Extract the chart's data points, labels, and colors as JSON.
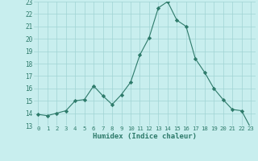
{
  "xlabel": "Humidex (Indice chaleur)",
  "x": [
    0,
    1,
    2,
    3,
    4,
    5,
    6,
    7,
    8,
    9,
    10,
    11,
    12,
    13,
    14,
    15,
    16,
    17,
    18,
    19,
    20,
    21,
    22,
    23
  ],
  "y": [
    13.9,
    13.8,
    14.0,
    14.2,
    15.0,
    15.1,
    16.2,
    15.4,
    14.7,
    15.5,
    16.5,
    18.7,
    20.1,
    22.5,
    23.0,
    21.5,
    21.0,
    18.4,
    17.3,
    16.0,
    15.1,
    14.3,
    14.2,
    12.8
  ],
  "ylim": [
    13,
    23
  ],
  "yticks": [
    13,
    14,
    15,
    16,
    17,
    18,
    19,
    20,
    21,
    22,
    23
  ],
  "line_color": "#2d7a6a",
  "marker": "D",
  "marker_size": 2.2,
  "bg_color": "#c8eeee",
  "grid_color": "#a0d4d4",
  "tick_color": "#2d7a6a",
  "label_color": "#2d7a6a",
  "font_family": "monospace"
}
